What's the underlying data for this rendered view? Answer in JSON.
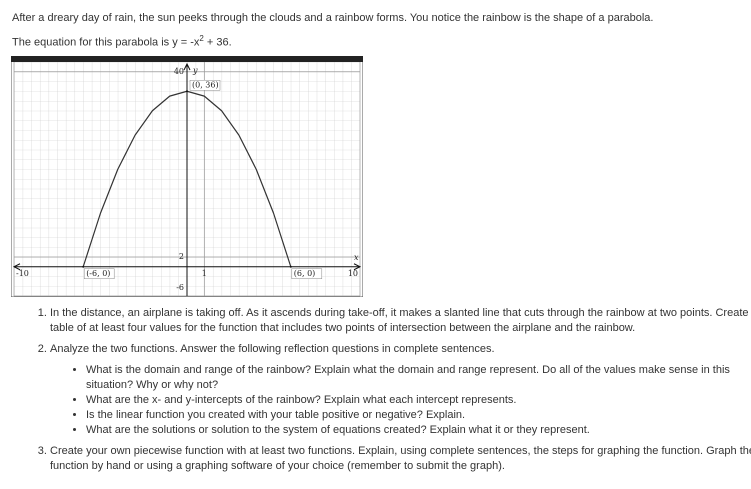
{
  "intro": "After a dreary day of rain, the sun peeks through the clouds and a rainbow forms. You notice the rainbow is the shape of a parabola.",
  "equation": {
    "before": "The equation for this parabola is y = -x",
    "exponent": "2",
    "after": " + 36."
  },
  "chart_data": {
    "type": "line",
    "x_label": "x",
    "y_label": "y",
    "x": [
      -6,
      -5,
      -4,
      -3,
      -2,
      -1,
      0,
      1,
      2,
      3,
      4,
      5,
      6
    ],
    "series": [
      {
        "color": "#333333",
        "values": [
          0,
          11,
          20,
          27,
          32,
          35,
          36,
          35,
          32,
          27,
          20,
          11,
          0
        ]
      }
    ],
    "xlim": [
      -10,
      10
    ],
    "ylim": [
      -6,
      42
    ],
    "xticks": [
      -10,
      1,
      10
    ],
    "yticks": [
      -6,
      2,
      40
    ],
    "grid": true,
    "annotations": [
      {
        "text": "(0, 36)",
        "x": 0,
        "y": 36
      },
      {
        "text": "(-6, 0)",
        "x": -6,
        "y": 0
      },
      {
        "text": "(6, 0)",
        "x": 6,
        "y": 0
      }
    ]
  },
  "questions": [
    {
      "text": "In the distance, an airplane is taking off. As it ascends during take-off, it makes a slanted line that cuts through the rainbow at two points. Create a table of at least four values for the function that includes two points of intersection between the airplane and the rainbow."
    },
    {
      "text": "Analyze the two functions. Answer the following reflection questions in complete sentences.",
      "bullets": [
        "What is the domain and range of the rainbow? Explain what the domain and range represent. Do all of the values make sense in this situation? Why or why not?",
        "What are the x- and y-intercepts of the rainbow? Explain what each intercept represents.",
        "Is the linear function you created with your table positive or negative? Explain.",
        "What are the solutions or solution to the system of equations created? Explain what it or they represent."
      ]
    },
    {
      "text": "Create your own piecewise function with at least two functions. Explain, using complete sentences, the steps for graphing the function. Graph the function by hand or using a graphing software of your choice (remember to submit the graph)."
    }
  ]
}
